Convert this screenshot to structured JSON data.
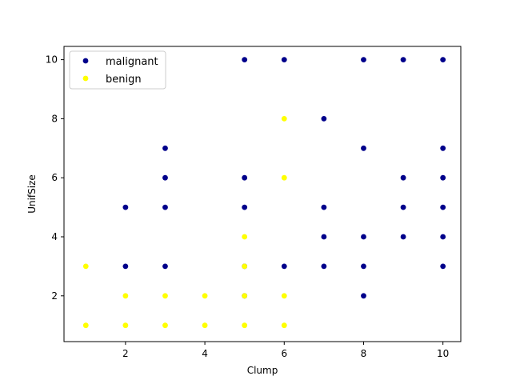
{
  "chart_data": {
    "type": "scatter",
    "xlabel": "Clump",
    "ylabel": "UnifSize",
    "xlim": [
      0.45,
      10.45
    ],
    "ylim": [
      0.45,
      10.45
    ],
    "xticks": [
      2,
      4,
      6,
      8,
      10
    ],
    "yticks": [
      2,
      4,
      6,
      8,
      10
    ],
    "grid": false,
    "legend_position": "top-left",
    "series": [
      {
        "name": "malignant",
        "color": "#00008b",
        "points": [
          [
            5,
            10
          ],
          [
            6,
            10
          ],
          [
            8,
            10
          ],
          [
            9,
            10
          ],
          [
            10,
            10
          ],
          [
            7,
            8
          ],
          [
            3,
            7
          ],
          [
            8,
            7
          ],
          [
            10,
            7
          ],
          [
            3,
            6
          ],
          [
            5,
            6
          ],
          [
            9,
            6
          ],
          [
            10,
            6
          ],
          [
            2,
            5
          ],
          [
            3,
            5
          ],
          [
            5,
            5
          ],
          [
            7,
            5
          ],
          [
            9,
            5
          ],
          [
            10,
            5
          ],
          [
            7,
            4
          ],
          [
            8,
            4
          ],
          [
            9,
            4
          ],
          [
            10,
            4
          ],
          [
            2,
            3
          ],
          [
            3,
            3
          ],
          [
            5,
            3
          ],
          [
            6,
            3
          ],
          [
            7,
            3
          ],
          [
            8,
            3
          ],
          [
            10,
            3
          ],
          [
            8,
            2
          ],
          [
            5,
            2
          ]
        ]
      },
      {
        "name": "benign",
        "color": "#ffff00",
        "points": [
          [
            6,
            8
          ],
          [
            6,
            6
          ],
          [
            5,
            4
          ],
          [
            1,
            3
          ],
          [
            5,
            3
          ],
          [
            2,
            2
          ],
          [
            3,
            2
          ],
          [
            4,
            2
          ],
          [
            5,
            2
          ],
          [
            6,
            2
          ],
          [
            1,
            1
          ],
          [
            2,
            1
          ],
          [
            3,
            1
          ],
          [
            4,
            1
          ],
          [
            5,
            1
          ],
          [
            6,
            1
          ]
        ]
      }
    ]
  }
}
